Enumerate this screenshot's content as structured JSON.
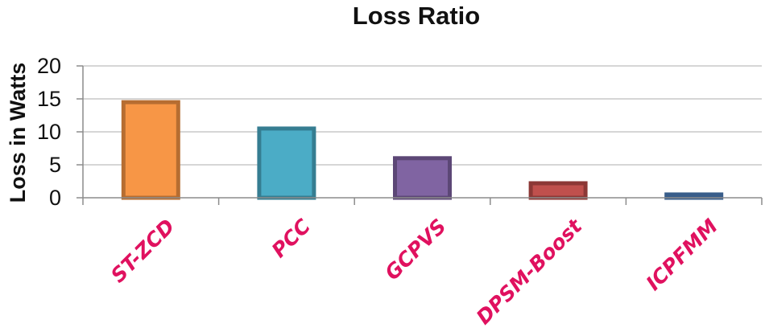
{
  "chart_data": {
    "type": "bar",
    "title": "Loss Ratio",
    "ylabel": "Loss in Watts",
    "xlabel": "",
    "categories": [
      "ST-ZCD",
      "PCC",
      "GCPVS",
      "DPSM-Boost",
      "ICPFMM"
    ],
    "values": [
      14.5,
      10.5,
      6,
      2.2,
      0.5
    ],
    "ylim": [
      0,
      20
    ],
    "yticks": [
      "0",
      "5",
      "10",
      "15",
      "20"
    ],
    "grid": true,
    "legend": "none",
    "bar_fill_colors": [
      "#f79646",
      "#4bacc6",
      "#8064a2",
      "#c0504d",
      "#4f81bd"
    ],
    "bar_edge_colors": [
      "#b66d31",
      "#357d91",
      "#5c4776",
      "#8c3836",
      "#385d8a"
    ],
    "tick_label_color": "#e0115f"
  }
}
